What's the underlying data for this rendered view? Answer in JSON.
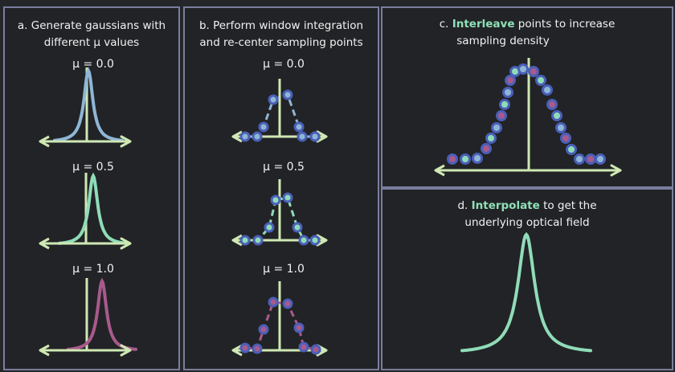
{
  "panel_a": {
    "title_line1": "a. Generate gaussians with",
    "title_line2": "different μ values",
    "mu_labels": [
      "μ = 0.0",
      "μ = 0.5",
      "μ = 1.0"
    ]
  },
  "panel_b": {
    "title_line1": "b. Perform window integration",
    "title_line2": "and re-center sampling points",
    "mu_labels": [
      "μ = 0.0",
      "μ = 0.5",
      "μ = 1.0"
    ]
  },
  "panel_c": {
    "prefix": "c. ",
    "highlight": "Interleave",
    "rest_line1": " points to increase",
    "line2": "sampling density"
  },
  "panel_d": {
    "prefix": "d. ",
    "highlight": "Interpolate",
    "rest_line1": " to get the",
    "line2": "underlying optical field"
  },
  "colors": {
    "axis": "#cfe8b4",
    "blue": "#8fb6d6",
    "green": "#8fdcb8",
    "magenta": "#a85a8c",
    "dot_edge": "#4a5fb8",
    "border": "#7b7d9e"
  }
}
